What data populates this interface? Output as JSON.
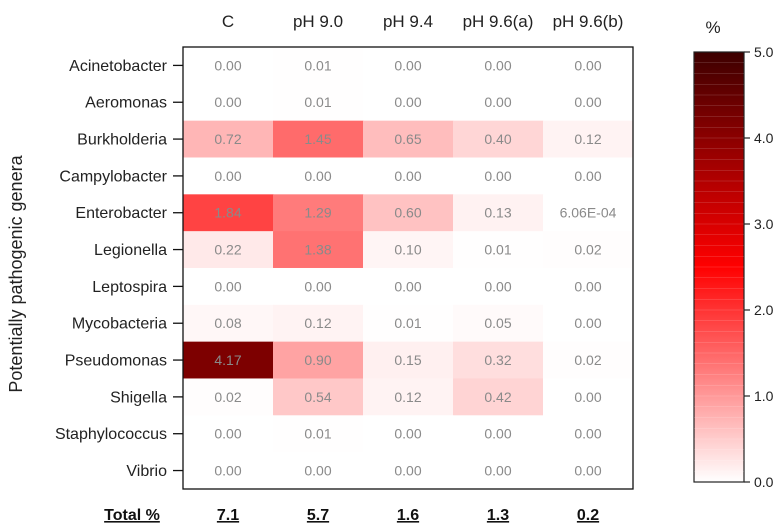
{
  "chart_data": {
    "type": "heatmap",
    "title": "",
    "xlabel": "",
    "ylabel": "Potentially pathogenic genera",
    "columns": [
      "C",
      "pH 9.0",
      "pH 9.4",
      "pH 9.6(a)",
      "pH 9.6(b)"
    ],
    "rows": [
      "Acinetobacter",
      "Aeromonas",
      "Burkholderia",
      "Campylobacter",
      "Enterobacter",
      "Legionella",
      "Leptospira",
      "Mycobacteria",
      "Pseudomonas",
      "Shigella",
      "Staphylococcus",
      "Vibrio"
    ],
    "values": [
      [
        0.0,
        0.01,
        0.0,
        0.0,
        0.0
      ],
      [
        0.0,
        0.01,
        0.0,
        0.0,
        0.0
      ],
      [
        0.72,
        1.45,
        0.65,
        0.4,
        0.12
      ],
      [
        0.0,
        0.0,
        0.0,
        0.0,
        0.0
      ],
      [
        1.84,
        1.29,
        0.6,
        0.13,
        0.000606
      ],
      [
        0.22,
        1.38,
        0.1,
        0.01,
        0.02
      ],
      [
        0.0,
        0.0,
        0.0,
        0.0,
        0.0
      ],
      [
        0.08,
        0.12,
        0.01,
        0.05,
        0.0
      ],
      [
        4.17,
        0.9,
        0.15,
        0.32,
        0.02
      ],
      [
        0.02,
        0.54,
        0.12,
        0.42,
        0.0
      ],
      [
        0.0,
        0.01,
        0.0,
        0.0,
        0.0
      ],
      [
        0.0,
        0.0,
        0.0,
        0.0,
        0.0
      ]
    ],
    "cell_labels": [
      [
        "0.00",
        "0.01",
        "0.00",
        "0.00",
        "0.00"
      ],
      [
        "0.00",
        "0.01",
        "0.00",
        "0.00",
        "0.00"
      ],
      [
        "0.72",
        "1.45",
        "0.65",
        "0.40",
        "0.12"
      ],
      [
        "0.00",
        "0.00",
        "0.00",
        "0.00",
        "0.00"
      ],
      [
        "1.84",
        "1.29",
        "0.60",
        "0.13",
        "6.06E-04"
      ],
      [
        "0.22",
        "1.38",
        "0.10",
        "0.01",
        "0.02"
      ],
      [
        "0.00",
        "0.00",
        "0.00",
        "0.00",
        "0.00"
      ],
      [
        "0.08",
        "0.12",
        "0.01",
        "0.05",
        "0.00"
      ],
      [
        "4.17",
        "0.90",
        "0.15",
        "0.32",
        "0.02"
      ],
      [
        "0.02",
        "0.54",
        "0.12",
        "0.42",
        "0.00"
      ],
      [
        "0.00",
        "0.01",
        "0.00",
        "0.00",
        "0.00"
      ],
      [
        "0.00",
        "0.00",
        "0.00",
        "0.00",
        "0.00"
      ]
    ],
    "totals_label": "Total %",
    "totals": [
      "7.1",
      "5.7",
      "1.6",
      "1.3",
      "0.2"
    ],
    "colorbar": {
      "title": "%",
      "range": [
        0,
        5
      ],
      "ticks": [
        "0.0",
        "1.0",
        "2.0",
        "3.0",
        "4.0",
        "5.0"
      ],
      "colors": [
        "#ffffff",
        "#ff0000",
        "#3d0000"
      ]
    },
    "grid": false
  }
}
